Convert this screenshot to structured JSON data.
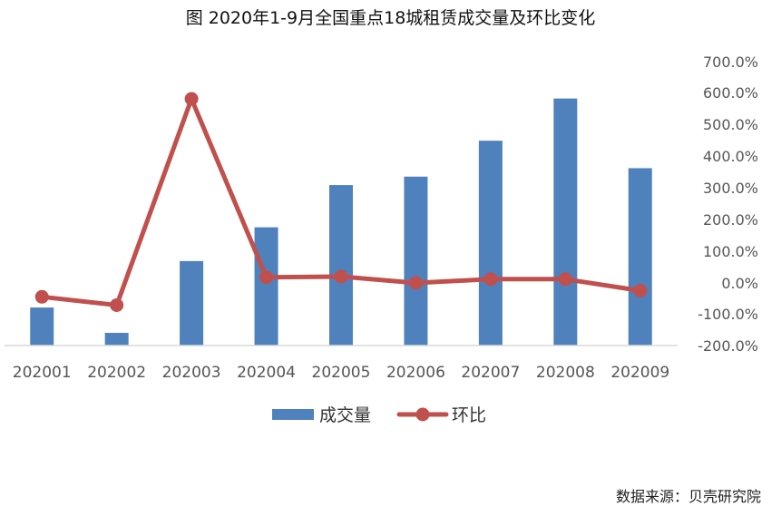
{
  "title": "图 2020年1-9月全国重点18城租赁成交量及环比变化",
  "source": "数据来源：贝壳研究院",
  "chart_data": {
    "type": "bar",
    "title": "图 2020年1-9月全国重点18城租赁成交量及环比变化",
    "categories": [
      "202001",
      "202002",
      "202003",
      "202004",
      "202005",
      "202006",
      "202007",
      "202008",
      "202009"
    ],
    "series": [
      {
        "name": "成交量",
        "type": "bar",
        "color": "#4F81BD",
        "axis": "left-hidden",
        "values": [
          18,
          6,
          40,
          56,
          76,
          80,
          97,
          117,
          84
        ]
      },
      {
        "name": "环比",
        "type": "line",
        "color": "#C0504D",
        "axis": "right",
        "values": [
          -45,
          -72,
          580,
          18,
          20,
          0,
          12,
          12,
          -25
        ]
      }
    ],
    "right_axis": {
      "ylim": [
        -200,
        700
      ],
      "ticks": [
        "700.0%",
        "600.0%",
        "500.0%",
        "400.0%",
        "300.0%",
        "200.0%",
        "100.0%",
        "0.0%",
        "-100.0%",
        "-200.0%"
      ]
    },
    "legend": {
      "position": "bottom",
      "items": [
        {
          "label": "成交量",
          "marker": "bar",
          "color": "#4F81BD"
        },
        {
          "label": "环比",
          "marker": "line",
          "color": "#C0504D"
        }
      ]
    },
    "grid": false
  }
}
